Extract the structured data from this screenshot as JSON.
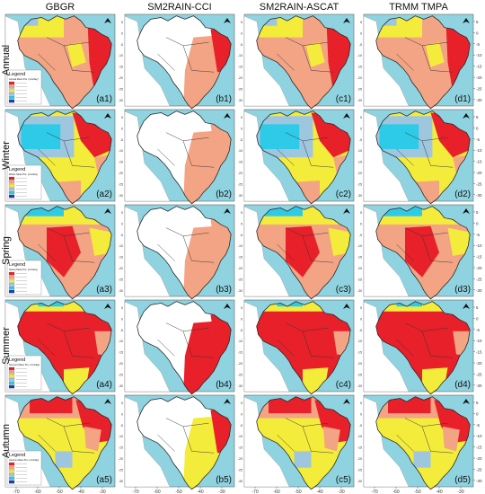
{
  "columns": [
    "GBGR",
    "SM2RAIN-CCI",
    "SM2RAIN-ASCAT",
    "TRMM TMPA"
  ],
  "rows": [
    "Annual",
    "Winter",
    "Spring",
    "Summer",
    "Autumn"
  ],
  "panel_labels": [
    [
      "(a1)",
      "(b1)",
      "(c1)",
      "(d1)"
    ],
    [
      "(a2)",
      "(b2)",
      "(c2)",
      "(d2)"
    ],
    [
      "(a3)",
      "(b3)",
      "(c3)",
      "(d3)"
    ],
    [
      "(a4)",
      "(b4)",
      "(c4)",
      "(d4)"
    ],
    [
      "(a5)",
      "(b5)",
      "(c5)",
      "(d5)"
    ]
  ],
  "lon_ticks": [
    "-70",
    "-60",
    "-50",
    "-40",
    "-30"
  ],
  "lat_ticks": [
    "5",
    "0",
    "-5",
    "-10",
    "-15",
    "-20",
    "-25",
    "-30"
  ],
  "legend": {
    "title": "Legend",
    "subtitles": [
      "Annual Mean Pre. (mm/day)",
      "Winter Mean Pre. (mm/day)",
      "Spring Mean Pre. (mm/day)",
      "Summer Mean Pre. (mm/day)",
      "Autumn Mean Pre. (mm/day)"
    ]
  },
  "colors": {
    "ocean": "#8fd3e0",
    "very_high": "#e8202a",
    "high": "#f3a484",
    "medium": "#f4ec3a",
    "low": "#9fc6df",
    "very_low": "#2ecbe8",
    "extreme_low": "#1f3fa8",
    "no_data": "#ffffff",
    "border": "#222222"
  }
}
